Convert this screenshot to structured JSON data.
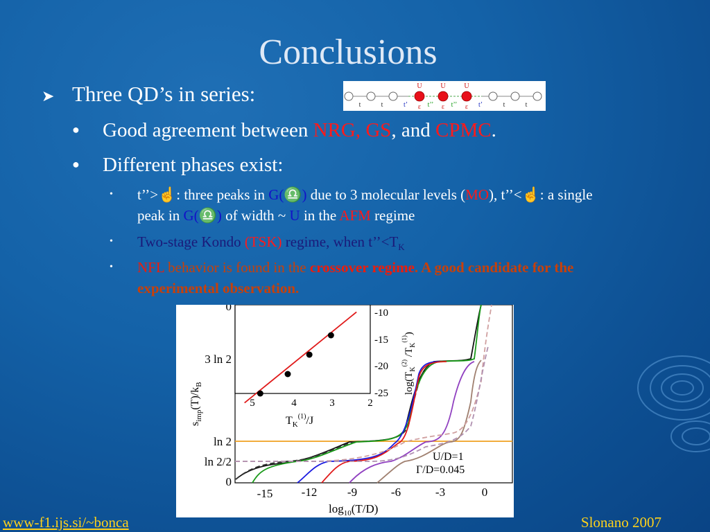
{
  "slide": {
    "title": "Conclusions",
    "bullet1": "Three QD’s in series:",
    "sub1": {
      "a": "Good agreement between ",
      "nrg": "NRG,",
      "sp": " ",
      "gs": "GS",
      "b": ", and ",
      "cpmc": "CPMC",
      "c": "."
    },
    "sub2": "Different phases exist:",
    "sub3": {
      "t1": "t’’>",
      "g1": "☝",
      "t2": ": three peaks in ",
      "g": "G(",
      "om": "♎",
      "gp": ")",
      "t3": " due to 3 molecular levels (",
      "mo": "MO",
      "t4": "), t’’<",
      "t5": ": a single peak in ",
      "t6": " of width ~ ",
      "u": "U",
      "t7": " in the ",
      "afm": "AFM",
      "t8": " regime"
    },
    "sub4": {
      "a": "Two-stage Kondo ",
      "tsk": "(TSK)",
      "b": " regime, when t’’<T",
      "k": "K"
    },
    "sub5": {
      "nfl": "NFL",
      "a": " behavior is found in the ",
      "cr": "crossover regime",
      "b": ". A good candidate for the experimental observation."
    },
    "footer_left": "www-f1.ijs.si/~bonca",
    "footer_right": "Slonano  2007"
  },
  "qd_diagram": {
    "top_labels": [
      "U",
      "U",
      "U"
    ],
    "bottom_labels": [
      "t",
      "t",
      "t’",
      "ε",
      "t’’",
      "ε",
      "t’’",
      "ε",
      "t’",
      "t",
      "t"
    ]
  },
  "chart_data": {
    "type": "line",
    "xlabel": "log10(T/D)",
    "ylabel": "simp(T)/kB",
    "x_ticks": [
      "-15",
      "-12",
      "-9",
      "-6",
      "-3",
      "0"
    ],
    "y_ticks": [
      "0",
      "ln 2/2",
      "ln 2",
      "3 ln 2",
      "0"
    ],
    "xlim": [
      -18,
      0
    ],
    "annotation": [
      "U/D=1",
      "Γ/D=0.045"
    ],
    "inset": {
      "type": "scatter",
      "xlabel": "TK(1)/J",
      "ylabel": "log(TK(2)/TK(1))",
      "x_ticks": [
        "5",
        "4",
        "3",
        "2"
      ],
      "y_ticks": [
        "-10",
        "-15",
        "-20",
        "-25"
      ],
      "x": [
        4.8,
        4.1,
        3.55,
        3.0
      ],
      "y": [
        -24.5,
        -21.0,
        -17.5,
        -14.0
      ]
    }
  }
}
